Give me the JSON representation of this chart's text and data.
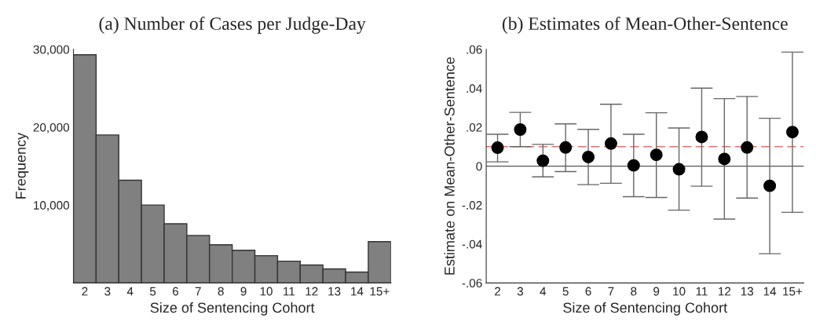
{
  "chart_data": [
    {
      "type": "bar",
      "title": "(a) Number of Cases per Judge-Day",
      "xlabel": "Size of Sentencing Cohort",
      "ylabel": "Frequency",
      "categories": [
        "2",
        "3",
        "4",
        "5",
        "6",
        "7",
        "8",
        "9",
        "10",
        "11",
        "12",
        "13",
        "14",
        "15+"
      ],
      "values": [
        29300,
        19000,
        13200,
        10000,
        7600,
        6100,
        4900,
        4200,
        3500,
        2800,
        2300,
        1800,
        1400,
        5300
      ],
      "color": "#808080",
      "ylim": [
        0,
        30000
      ],
      "yticks": [
        {
          "value": 10000,
          "label": "10,000"
        },
        {
          "value": 20000,
          "label": "20,000"
        },
        {
          "value": 30000,
          "label": "30,000"
        }
      ],
      "grid": false,
      "legend": false
    },
    {
      "type": "scatter",
      "title": "(b) Estimates of Mean-Other-Sentence",
      "xlabel": "Size of Sentencing Cohort",
      "ylabel": "Estimate on Mean-Other-Sentence",
      "categories": [
        "2",
        "3",
        "4",
        "5",
        "6",
        "7",
        "8",
        "9",
        "10",
        "11",
        "12",
        "13",
        "14",
        "15+"
      ],
      "values": [
        0.0095,
        0.0188,
        0.0028,
        0.0096,
        0.0047,
        0.0116,
        0.0004,
        0.0058,
        -0.0016,
        0.015,
        0.0037,
        0.0096,
        -0.0101,
        0.0175
      ],
      "errors": [
        [
          0.0022,
          0.0164
        ],
        [
          0.01,
          0.0276
        ],
        [
          -0.0055,
          0.0112
        ],
        [
          -0.0028,
          0.0217
        ],
        [
          -0.0095,
          0.0189
        ],
        [
          -0.0088,
          0.0318
        ],
        [
          -0.0157,
          0.0164
        ],
        [
          -0.0161,
          0.0274
        ],
        [
          -0.0226,
          0.0196
        ],
        [
          -0.0103,
          0.0401
        ],
        [
          -0.0272,
          0.0347
        ],
        [
          -0.0164,
          0.0358
        ],
        [
          -0.045,
          0.0246
        ],
        [
          -0.0237,
          0.0586
        ]
      ],
      "color": "#000000",
      "marker": "circle",
      "ylim": [
        -0.06,
        0.06
      ],
      "yticks": [
        {
          "value": -0.06,
          "label": "-.06"
        },
        {
          "value": -0.04,
          "label": "-.04"
        },
        {
          "value": -0.02,
          "label": "-.02"
        },
        0,
        {
          "value": 0.02,
          "label": ".02"
        },
        {
          "value": 0.04,
          "label": ".04"
        },
        {
          "value": 0.06,
          "label": ".06"
        }
      ],
      "ref_lines": [
        {
          "axis": "y",
          "value": 0,
          "color": "#555555",
          "line_style": "solid"
        },
        {
          "axis": "y",
          "value": 0.01,
          "color": "#ff6666",
          "line_style": "dashed"
        }
      ],
      "grid": false,
      "legend": false
    }
  ]
}
